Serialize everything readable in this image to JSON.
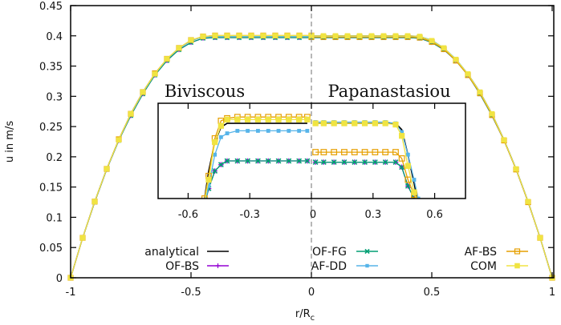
{
  "chart_data": {
    "type": "line",
    "xlabel": "r/R",
    "xlabel_sub": "c",
    "ylabel": "u in m/s",
    "xlim": [
      -1,
      1
    ],
    "ylim": [
      0,
      0.45
    ],
    "grid": false,
    "legend_placement": "bottom-center",
    "x_ticks": [
      "-1",
      "-0.5",
      "0",
      "0.5",
      "1"
    ],
    "x_tick_values": [
      -1,
      -0.5,
      0,
      0.5,
      1
    ],
    "y_ticks": [
      "0",
      "0.05",
      "0.1",
      "0.15",
      "0.2",
      "0.25",
      "0.3",
      "0.35",
      "0.4",
      "0.45"
    ],
    "y_tick_values": [
      0,
      0.05,
      0.1,
      0.15,
      0.2,
      0.25,
      0.3,
      0.35,
      0.4,
      0.45
    ],
    "region_labels": [
      "Biviscous",
      "Papanastasiou"
    ],
    "x_left": [
      -1,
      -0.95,
      -0.9,
      -0.85,
      -0.8,
      -0.75,
      -0.7,
      -0.65,
      -0.6,
      -0.55,
      -0.5,
      -0.45,
      -0.4,
      -0.35,
      -0.3,
      -0.25,
      -0.2,
      -0.15,
      -0.1,
      -0.05,
      0
    ],
    "x_right": [
      0,
      0.05,
      0.1,
      0.15,
      0.2,
      0.25,
      0.3,
      0.35,
      0.4,
      0.45,
      0.5,
      0.55,
      0.6,
      0.65,
      0.7,
      0.75,
      0.8,
      0.85,
      0.9,
      0.95,
      1
    ],
    "series": [
      {
        "name": "analytical",
        "color": "#000000",
        "marker": "none",
        "left": [
          0,
          0.066,
          0.126,
          0.18,
          0.228,
          0.271,
          0.307,
          0.337,
          0.361,
          0.38,
          0.392,
          0.399,
          0.4,
          0.4,
          0.4,
          0.4,
          0.4,
          0.4,
          0.4,
          0.4,
          0.4
        ],
        "right": [
          0.4,
          0.4,
          0.4,
          0.4,
          0.4,
          0.4,
          0.4,
          0.4,
          0.4,
          0.399,
          0.392,
          0.38,
          0.361,
          0.337,
          0.307,
          0.271,
          0.228,
          0.18,
          0.126,
          0.066,
          0
        ]
      },
      {
        "name": "OF-BS",
        "color": "#9400d3",
        "marker": "plus",
        "left": [
          0,
          0.066,
          0.125,
          0.179,
          0.227,
          0.268,
          0.304,
          0.335,
          0.359,
          0.377,
          0.389,
          0.396,
          0.397,
          0.397,
          0.397,
          0.397,
          0.397,
          0.397,
          0.397,
          0.397,
          0.397
        ],
        "right": [
          0.397,
          0.397,
          0.397,
          0.397,
          0.397,
          0.397,
          0.397,
          0.397,
          0.397,
          0.396,
          0.389,
          0.377,
          0.359,
          0.335,
          0.304,
          0.268,
          0.227,
          0.179,
          0.125,
          0.066,
          0
        ]
      },
      {
        "name": "OF-FG",
        "color": "#009e73",
        "marker": "cross",
        "left": [
          0,
          0.066,
          0.125,
          0.179,
          0.227,
          0.268,
          0.304,
          0.335,
          0.359,
          0.377,
          0.389,
          0.396,
          0.397,
          0.397,
          0.397,
          0.397,
          0.397,
          0.397,
          0.397,
          0.397,
          0.397
        ],
        "right": [
          0.397,
          0.397,
          0.397,
          0.397,
          0.397,
          0.397,
          0.397,
          0.397,
          0.397,
          0.396,
          0.389,
          0.377,
          0.359,
          0.335,
          0.304,
          0.268,
          0.227,
          0.179,
          0.125,
          0.066,
          0
        ]
      },
      {
        "name": "AF-DD",
        "color": "#56b4e9",
        "marker": "small-square",
        "left": [
          0,
          0.066,
          0.126,
          0.18,
          0.228,
          0.27,
          0.306,
          0.337,
          0.361,
          0.379,
          0.392,
          0.398,
          0.399,
          0.399,
          0.399,
          0.399,
          0.399,
          0.399,
          0.399,
          0.399,
          0.399
        ],
        "right": [
          0.4,
          0.4,
          0.4,
          0.4,
          0.4,
          0.4,
          0.4,
          0.4,
          0.4,
          0.399,
          0.393,
          0.38,
          0.362,
          0.337,
          0.307,
          0.271,
          0.228,
          0.18,
          0.126,
          0.066,
          0
        ]
      },
      {
        "name": "AF-BS",
        "color": "#e69f00",
        "marker": "open-square",
        "left": [
          0,
          0.066,
          0.126,
          0.18,
          0.229,
          0.271,
          0.307,
          0.338,
          0.362,
          0.38,
          0.393,
          0.399,
          0.4005,
          0.4005,
          0.4005,
          0.4005,
          0.4005,
          0.4005,
          0.4005,
          0.4005,
          0.4005
        ],
        "right": [
          0.398,
          0.398,
          0.398,
          0.398,
          0.398,
          0.398,
          0.398,
          0.398,
          0.398,
          0.397,
          0.39,
          0.378,
          0.359,
          0.335,
          0.305,
          0.269,
          0.227,
          0.179,
          0.125,
          0.066,
          0
        ]
      },
      {
        "name": "COM",
        "color": "#f0e442",
        "marker": "filled-square",
        "left": [
          0,
          0.066,
          0.126,
          0.18,
          0.228,
          0.271,
          0.307,
          0.337,
          0.362,
          0.38,
          0.393,
          0.399,
          0.4003,
          0.4003,
          0.4003,
          0.4003,
          0.4003,
          0.4003,
          0.4003,
          0.4003,
          0.4003
        ],
        "right": [
          0.4,
          0.4,
          0.4,
          0.4,
          0.4,
          0.4,
          0.4,
          0.4,
          0.4,
          0.399,
          0.392,
          0.38,
          0.361,
          0.337,
          0.307,
          0.271,
          0.228,
          0.18,
          0.126,
          0.066,
          0
        ]
      }
    ],
    "inset": {
      "xlim": [
        -0.75,
        0.75
      ],
      "ylim": [
        0.394,
        0.4016
      ],
      "x_ticks": [
        "-0.6",
        "-0.3",
        "0",
        "0.3",
        "0.6"
      ],
      "x_tick_values": [
        -0.6,
        -0.3,
        0,
        0.3,
        0.6
      ],
      "x_left": [
        -0.52,
        -0.5,
        -0.47,
        -0.44,
        -0.41,
        -0.36,
        -0.31,
        -0.26,
        -0.21,
        -0.16,
        -0.11,
        -0.06,
        -0.02
      ],
      "x_right": [
        0.02,
        0.06,
        0.11,
        0.16,
        0.21,
        0.26,
        0.31,
        0.36,
        0.41,
        0.44,
        0.47,
        0.5,
        0.52
      ],
      "series": [
        {
          "name": "analytical",
          "left": [
            0.394,
            0.3962,
            0.3985,
            0.3997,
            0.4,
            0.4,
            0.4,
            0.4,
            0.4,
            0.4,
            0.4,
            0.4,
            0.4
          ],
          "right": [
            0.4,
            0.4,
            0.4,
            0.4,
            0.4,
            0.4,
            0.4,
            0.4,
            0.4,
            0.3995,
            0.3975,
            0.3952,
            0.3935
          ]
        },
        {
          "name": "OF-BS",
          "left": [
            0.3935,
            0.3948,
            0.3962,
            0.3967,
            0.397,
            0.397,
            0.397,
            0.397,
            0.397,
            0.397,
            0.397,
            0.397,
            0.397
          ],
          "right": [
            0.3969,
            0.3969,
            0.3969,
            0.3969,
            0.3969,
            0.3969,
            0.3969,
            0.3969,
            0.3969,
            0.3965,
            0.395,
            0.394,
            0.3935
          ]
        },
        {
          "name": "OF-FG",
          "left": [
            0.3935,
            0.3948,
            0.3962,
            0.3967,
            0.397,
            0.397,
            0.397,
            0.397,
            0.397,
            0.397,
            0.397,
            0.397,
            0.397
          ],
          "right": [
            0.3969,
            0.3969,
            0.3969,
            0.3969,
            0.3969,
            0.3969,
            0.3969,
            0.3969,
            0.3969,
            0.3965,
            0.395,
            0.394,
            0.3935
          ]
        },
        {
          "name": "AF-DD",
          "left": [
            0.3935,
            0.395,
            0.3975,
            0.3989,
            0.3992,
            0.3994,
            0.3994,
            0.3994,
            0.3994,
            0.3994,
            0.3994,
            0.3994,
            0.3994
          ],
          "right": [
            0.4001,
            0.4001,
            0.4001,
            0.4001,
            0.4001,
            0.4001,
            0.4001,
            0.4001,
            0.4,
            0.3993,
            0.3975,
            0.3955,
            0.394
          ]
        },
        {
          "name": "AF-BS",
          "left": [
            0.394,
            0.3958,
            0.3988,
            0.4002,
            0.4004,
            0.4005,
            0.4005,
            0.4005,
            0.4005,
            0.4005,
            0.4005,
            0.4005,
            0.4005
          ],
          "right": [
            0.3977,
            0.3977,
            0.3977,
            0.3977,
            0.3977,
            0.3977,
            0.3977,
            0.3977,
            0.3977,
            0.3972,
            0.3955,
            0.3943,
            0.3935
          ]
        },
        {
          "name": "COM",
          "left": [
            0.3938,
            0.3955,
            0.3985,
            0.3998,
            0.4003,
            0.4003,
            0.4003,
            0.4003,
            0.4003,
            0.4003,
            0.4003,
            0.4003,
            0.4003
          ],
          "right": [
            0.4,
            0.4,
            0.4,
            0.4,
            0.4,
            0.4,
            0.4,
            0.4,
            0.3999,
            0.399,
            0.3966,
            0.3945,
            0.3935
          ]
        }
      ]
    }
  }
}
